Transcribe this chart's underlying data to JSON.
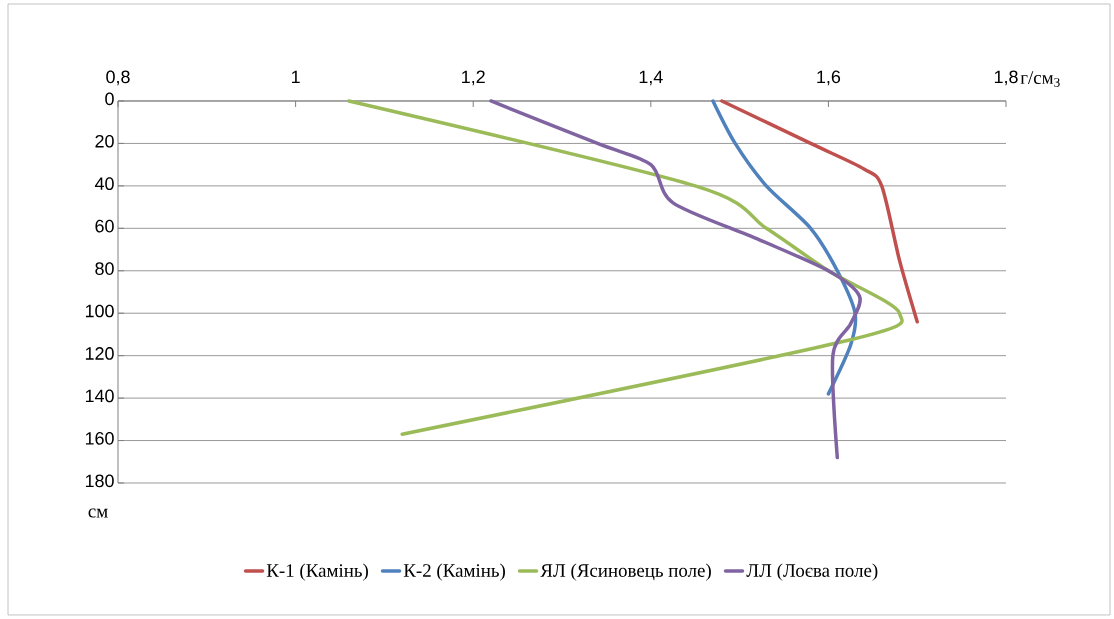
{
  "chart_data": {
    "type": "line",
    "xlabel": "г/см$_{3}$",
    "ylabel": "см",
    "xlim": [
      0.8,
      1.8
    ],
    "ylim": [
      180,
      0
    ],
    "xticks": [
      {
        "value": 0.8,
        "label": "0,8"
      },
      1,
      {
        "value": 1.2,
        "label": "1,2"
      },
      {
        "value": 1.4,
        "label": "1,4"
      },
      {
        "value": 1.6,
        "label": "1,6"
      },
      {
        "value": 1.8,
        "label": "1,8"
      }
    ],
    "yticks": [
      0,
      20,
      40,
      60,
      80,
      100,
      120,
      140,
      160,
      180
    ],
    "grid": "y",
    "legend": "bottom",
    "marker": "none",
    "line_style": "solid",
    "series": [
      {
        "name": "К-1 (Камінь)",
        "color": "#c0504d",
        "x": [
          1.48,
          1.58,
          1.64,
          1.66,
          1.68,
          1.7
        ],
        "values": [
          0,
          20,
          32,
          40,
          75,
          104
        ]
      },
      {
        "name": "К-2 (Камінь)",
        "color": "#4f81bd",
        "x": [
          1.47,
          1.495,
          1.53,
          1.58,
          1.61,
          1.63,
          1.625,
          1.6
        ],
        "values": [
          0,
          20,
          40,
          60,
          80,
          100,
          115,
          138
        ]
      },
      {
        "name": "ЯЛ (Ясиновець поле)",
        "color": "#9bbb59",
        "x": [
          1.06,
          1.45,
          1.53,
          1.6,
          1.68,
          1.62,
          1.12
        ],
        "values": [
          0,
          40,
          60,
          80,
          100,
          113,
          157
        ]
      },
      {
        "name": "ЛЛ (Лоєва поле)",
        "color": "#8064a2",
        "x": [
          1.22,
          1.34,
          1.4,
          1.425,
          1.52,
          1.6,
          1.635,
          1.625,
          1.605,
          1.61
        ],
        "values": [
          0,
          20,
          30,
          48,
          65,
          80,
          92,
          105,
          120,
          168
        ]
      }
    ]
  }
}
